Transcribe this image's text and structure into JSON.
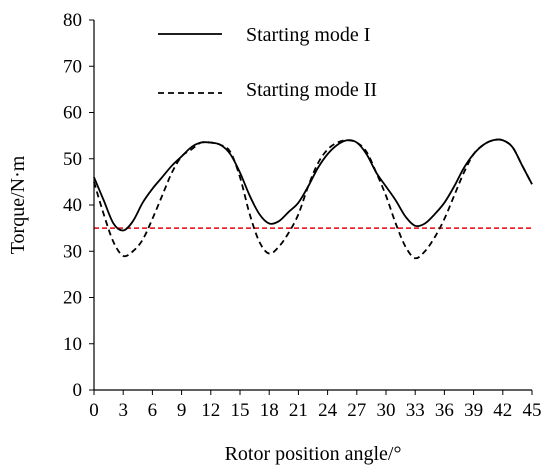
{
  "chart_data": {
    "type": "line",
    "xlabel": "Rotor position angle/°",
    "ylabel": "Torque/N·m",
    "xlim": [
      0,
      45
    ],
    "ylim": [
      0,
      80
    ],
    "x_ticks": [
      "0",
      "3",
      "6",
      "9",
      "12",
      "15",
      "18",
      "21",
      "24",
      "27",
      "30",
      "33",
      "36",
      "39",
      "42",
      "45"
    ],
    "y_ticks": [
      "0",
      "10",
      "20",
      "30",
      "40",
      "50",
      "60",
      "70",
      "80"
    ],
    "grid": false,
    "legend_position": "top-center",
    "reference_line": {
      "y": 35,
      "color": "#e8000b",
      "style": "dashed"
    },
    "series": [
      {
        "name": "Starting mode I",
        "style": "solid",
        "color": "#000000",
        "x": [
          0,
          1,
          2,
          3,
          4,
          5,
          6,
          7,
          8,
          9,
          10,
          11,
          12,
          13,
          14,
          15,
          16,
          17,
          18,
          19,
          20,
          21,
          22,
          23,
          24,
          25,
          26,
          27,
          28,
          29,
          30,
          31,
          32,
          33,
          34,
          35,
          36,
          37,
          38,
          39,
          40,
          41,
          42,
          43,
          44,
          45
        ],
        "y": [
          46,
          41,
          36,
          34.5,
          36.5,
          40.5,
          43.5,
          46,
          48.5,
          50.5,
          52.5,
          53.5,
          53.5,
          53,
          51,
          47,
          42,
          38,
          36,
          36.5,
          38.5,
          40.5,
          44,
          48,
          51,
          53,
          54,
          53.5,
          51,
          47,
          44,
          41,
          37.5,
          35.5,
          36,
          38,
          40.5,
          44,
          48,
          51,
          53,
          54,
          54,
          52.5,
          48.5,
          44.5
        ]
      },
      {
        "name": "Starting mode II",
        "style": "dashed",
        "color": "#000000",
        "x": [
          0,
          1,
          2,
          3,
          4,
          5,
          6,
          7,
          8,
          9,
          10,
          11,
          12,
          13,
          14,
          15,
          16,
          17,
          18,
          19,
          20,
          21,
          22,
          23,
          24,
          25,
          26,
          27,
          28,
          29,
          30,
          31,
          32,
          33,
          34,
          35,
          36,
          37,
          38,
          39,
          40,
          41,
          42,
          43,
          44,
          45
        ],
        "y": [
          45,
          38,
          32,
          29,
          30,
          32.5,
          37,
          42,
          47,
          50.5,
          52,
          53.5,
          53.5,
          53,
          51.5,
          46,
          38,
          32,
          29.5,
          31,
          34,
          38,
          44,
          49,
          52,
          53.5,
          54,
          53.5,
          51.5,
          47,
          42,
          36,
          31,
          28.5,
          30,
          33,
          37,
          42,
          47,
          51,
          53,
          54,
          54,
          52.5,
          48.5,
          44.5
        ]
      }
    ]
  }
}
